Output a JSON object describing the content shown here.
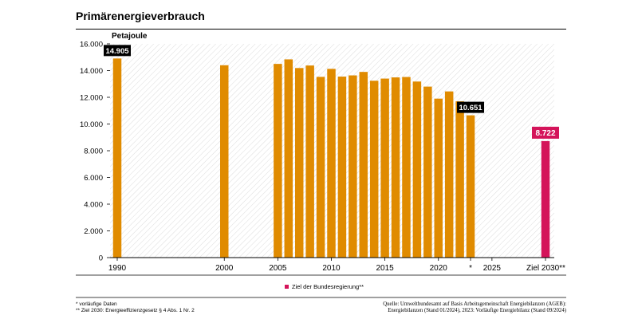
{
  "header": {
    "title": "Primärenergieverbrauch"
  },
  "chart_data": {
    "type": "bar",
    "ylabel": "Petajoule",
    "ylim": [
      0,
      16000
    ],
    "yticks": [
      "0",
      "2.000",
      "4.000",
      "6.000",
      "8.000",
      "10.000",
      "12.000",
      "14.000",
      "16.000"
    ],
    "x_ticks": [
      {
        "year": 1990,
        "label": "1990"
      },
      {
        "year": 2000,
        "label": "2000"
      },
      {
        "year": 2005,
        "label": "2005"
      },
      {
        "year": 2010,
        "label": "2010"
      },
      {
        "year": 2015,
        "label": "2015"
      },
      {
        "year": 2020,
        "label": "2020"
      },
      {
        "year": 2023,
        "label": "*"
      },
      {
        "year": 2025,
        "label": "2025"
      },
      {
        "year": 2030,
        "label": "Ziel 2030**"
      }
    ],
    "years": [
      1990,
      2000,
      2005,
      2006,
      2007,
      2008,
      2009,
      2010,
      2011,
      2012,
      2013,
      2014,
      2015,
      2016,
      2017,
      2018,
      2019,
      2020,
      2021,
      2022,
      2023
    ],
    "values": [
      14905,
      14400,
      14500,
      14840,
      14190,
      14380,
      13530,
      14130,
      13550,
      13640,
      13900,
      13240,
      13400,
      13490,
      13520,
      13180,
      12800,
      11900,
      12440,
      11700,
      10651
    ],
    "target": {
      "year": 2030,
      "value": 8722
    },
    "data_labels": [
      {
        "year": 1990,
        "value": 14905,
        "text": "14.905"
      },
      {
        "year": 2023,
        "value": 10651,
        "text": "10.651"
      }
    ],
    "target_label": "8.722",
    "legend": {
      "label": "Ziel der Bundesregierung**",
      "position": "bottom-center"
    },
    "colors": {
      "bar": "#E08B00",
      "target": "#D4145A",
      "label_bg": "#000000"
    },
    "grid": false,
    "hatched_background": true
  },
  "footnotes": {
    "left": [
      "* vorläufige Daten",
      "** Ziel 2030: Energieeffizienzgesetz § 4 Abs. 1 Nr. 2"
    ],
    "right": [
      "Quelle: Umweltbundesamt auf Basis Arbeitsgemeinschaft Energiebilanzen (AGEB):",
      "Energiebilanzen (Stand 01/2024), 2023: Vorläufige Energiebilanz (Stand 09/2024)"
    ]
  }
}
